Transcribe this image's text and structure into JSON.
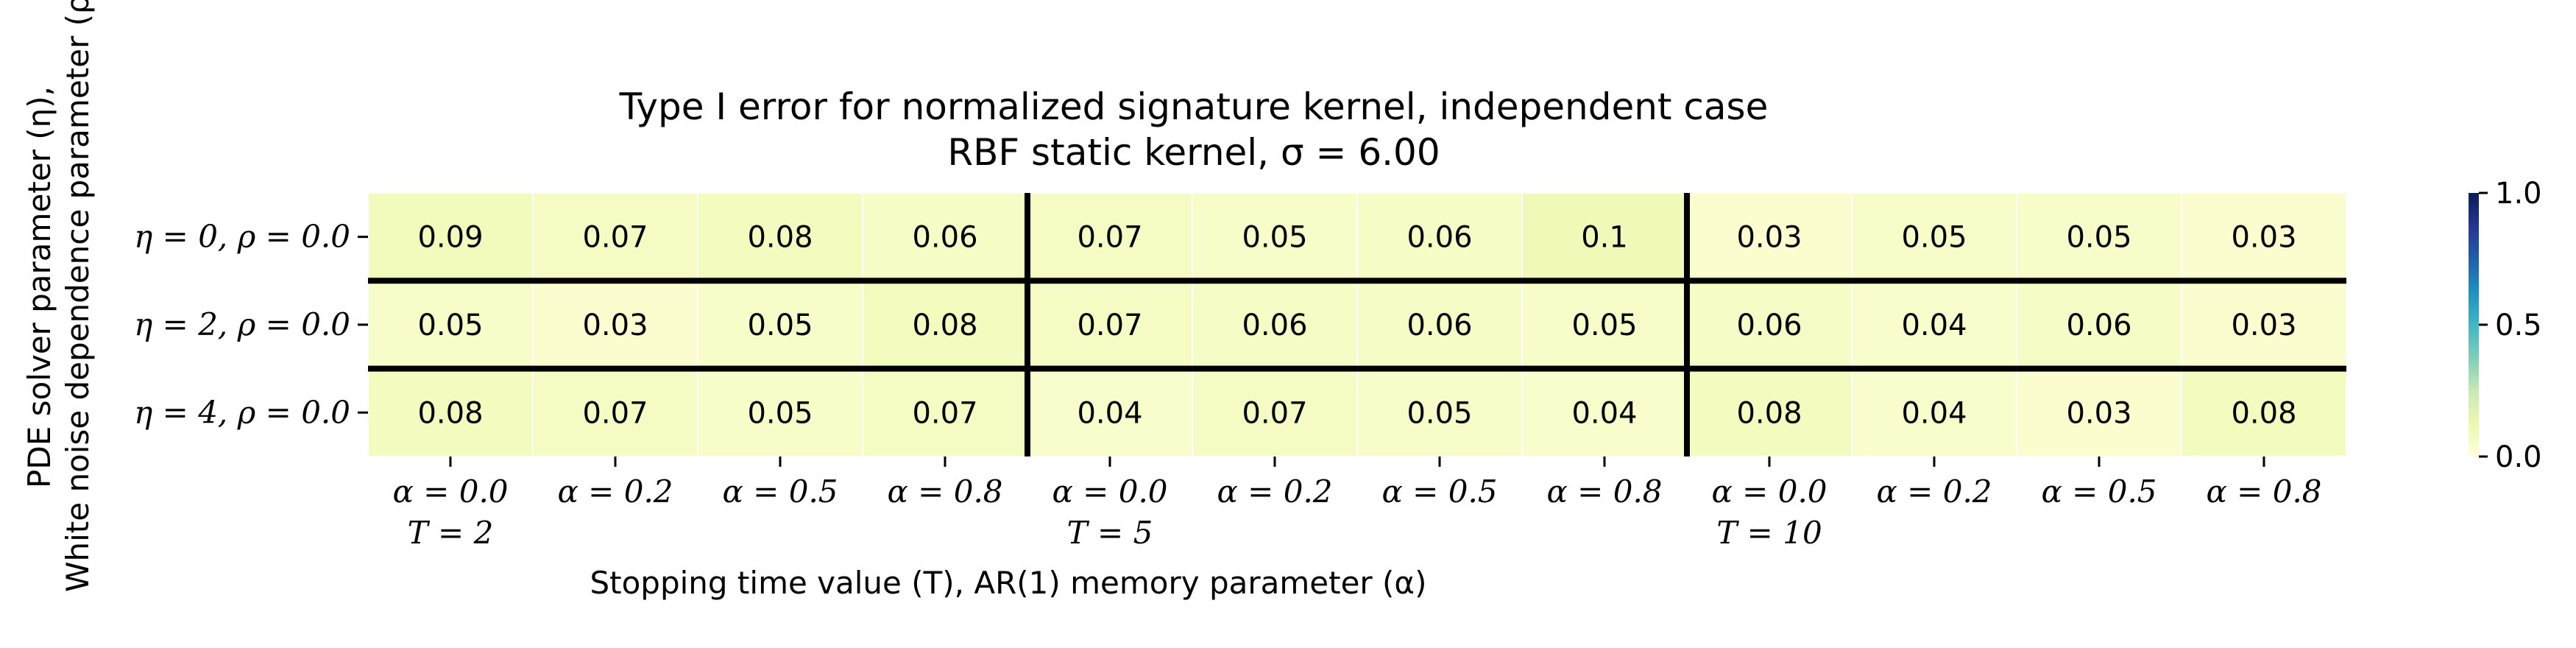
{
  "chart_data": {
    "type": "heatmap",
    "title": "Type I error for normalized signature kernel, independent case",
    "subtitle": "RBF static kernel, σ = 6.00",
    "xlabel": "Stopping time value (T), AR(1) memory parameter (α)",
    "ylabel_line1": "PDE solver parameter (η),",
    "ylabel_line2": "White noise dependence parameter (ρ)",
    "x_ticks": [
      {
        "alpha": "α = 0.0",
        "T": "T = 2"
      },
      {
        "alpha": "α = 0.2",
        "T": ""
      },
      {
        "alpha": "α = 0.5",
        "T": ""
      },
      {
        "alpha": "α = 0.8",
        "T": ""
      },
      {
        "alpha": "α = 0.0",
        "T": "T = 5"
      },
      {
        "alpha": "α = 0.2",
        "T": ""
      },
      {
        "alpha": "α = 0.5",
        "T": ""
      },
      {
        "alpha": "α = 0.8",
        "T": ""
      },
      {
        "alpha": "α = 0.0",
        "T": "T = 10"
      },
      {
        "alpha": "α = 0.2",
        "T": ""
      },
      {
        "alpha": "α = 0.5",
        "T": ""
      },
      {
        "alpha": "α = 0.8",
        "T": ""
      }
    ],
    "y_ticks": [
      "η = 0, ρ = 0.0",
      "η = 2, ρ = 0.0",
      "η = 4, ρ = 0.0"
    ],
    "values": [
      [
        0.09,
        0.07,
        0.08,
        0.06,
        0.07,
        0.05,
        0.06,
        0.1,
        0.03,
        0.05,
        0.05,
        0.03
      ],
      [
        0.05,
        0.03,
        0.05,
        0.08,
        0.07,
        0.06,
        0.06,
        0.05,
        0.06,
        0.04,
        0.06,
        0.03
      ],
      [
        0.08,
        0.07,
        0.05,
        0.07,
        0.04,
        0.07,
        0.05,
        0.04,
        0.08,
        0.04,
        0.03,
        0.08
      ]
    ],
    "value_labels": [
      [
        "0.09",
        "0.07",
        "0.08",
        "0.06",
        "0.07",
        "0.05",
        "0.06",
        "0.1",
        "0.03",
        "0.05",
        "0.05",
        "0.03"
      ],
      [
        "0.05",
        "0.03",
        "0.05",
        "0.08",
        "0.07",
        "0.06",
        "0.06",
        "0.05",
        "0.06",
        "0.04",
        "0.06",
        "0.03"
      ],
      [
        "0.08",
        "0.07",
        "0.05",
        "0.07",
        "0.04",
        "0.07",
        "0.05",
        "0.04",
        "0.08",
        "0.04",
        "0.03",
        "0.08"
      ]
    ],
    "vmin": 0.0,
    "vmax": 1.0,
    "colormap": "YlGnBu",
    "colorbar_ticks": [
      {
        "value": 1.0,
        "label": "1.0"
      },
      {
        "value": 0.5,
        "label": "0.5"
      },
      {
        "value": 0.0,
        "label": "0.0"
      }
    ],
    "group_separators": {
      "after_columns": [
        4,
        8
      ],
      "after_rows": [
        1,
        2
      ]
    }
  }
}
